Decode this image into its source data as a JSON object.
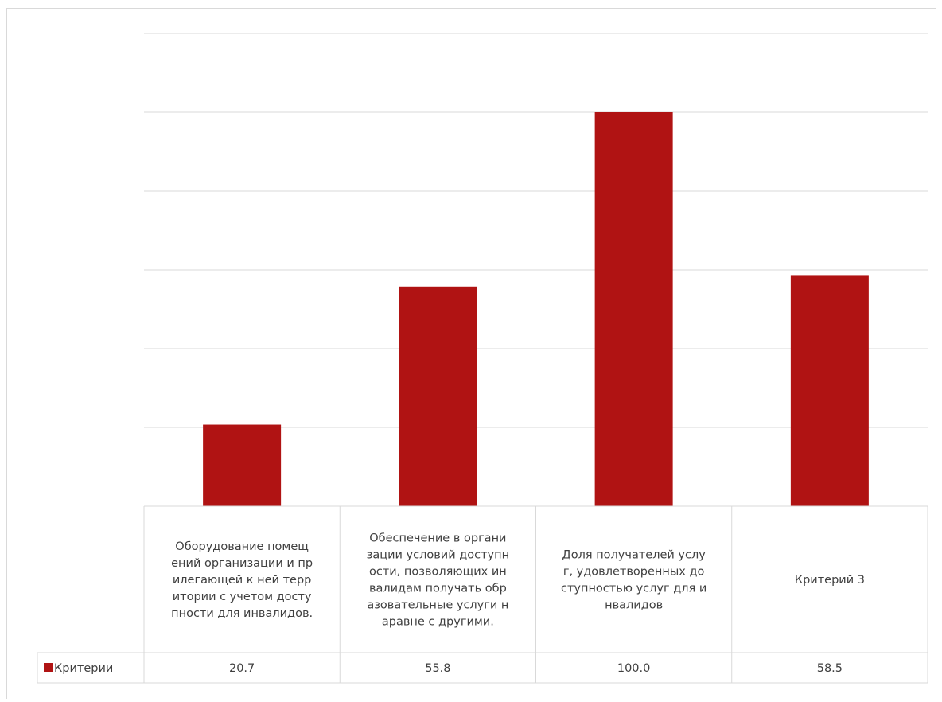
{
  "chart_data": {
    "type": "bar",
    "categories": [
      "Оборудование помещений организации и прилегающей к ней территории с учетом доступности для инвалидов.",
      "Обеспечение в организации условий доступности, позволяющих инвалидам получать образовательные услуги наравне с другими.",
      "Доля получателей услуг, удовлетворенных доступностью услуг для инвалидов",
      "Критерий 3"
    ],
    "category_lines": [
      [
        "Оборудование помещ",
        "ений организации и пр",
        "илегающей к ней терр",
        "итории с учетом досту",
        "пности для инвалидов."
      ],
      [
        "Обеспечение в органи",
        "зации условий доступн",
        "ости, позволяющих ин",
        "валидам получать обр",
        "азовательные услуги н",
        "аравне с другими."
      ],
      [
        "Доля получателей услу",
        "г, удовлетворенных до",
        "ступностью услуг для и",
        "нвалидов"
      ],
      [
        "Критерий 3"
      ]
    ],
    "series": [
      {
        "name": "Критерии",
        "values": [
          20.7,
          55.8,
          100.0,
          58.5
        ],
        "value_labels": [
          "20.7",
          "55.8",
          "100.0",
          "58.5"
        ],
        "color": "#b01313"
      }
    ],
    "ylim": [
      0,
      120
    ],
    "y_gridlines": [
      0,
      20,
      40,
      60,
      80,
      100,
      120
    ],
    "y_tick_labels_visible": false,
    "grid": true,
    "data_table": true,
    "legend": "data-table-left",
    "colors": {
      "bar": "#b01313",
      "grid": "#d9d9d9",
      "text": "#404040"
    }
  }
}
